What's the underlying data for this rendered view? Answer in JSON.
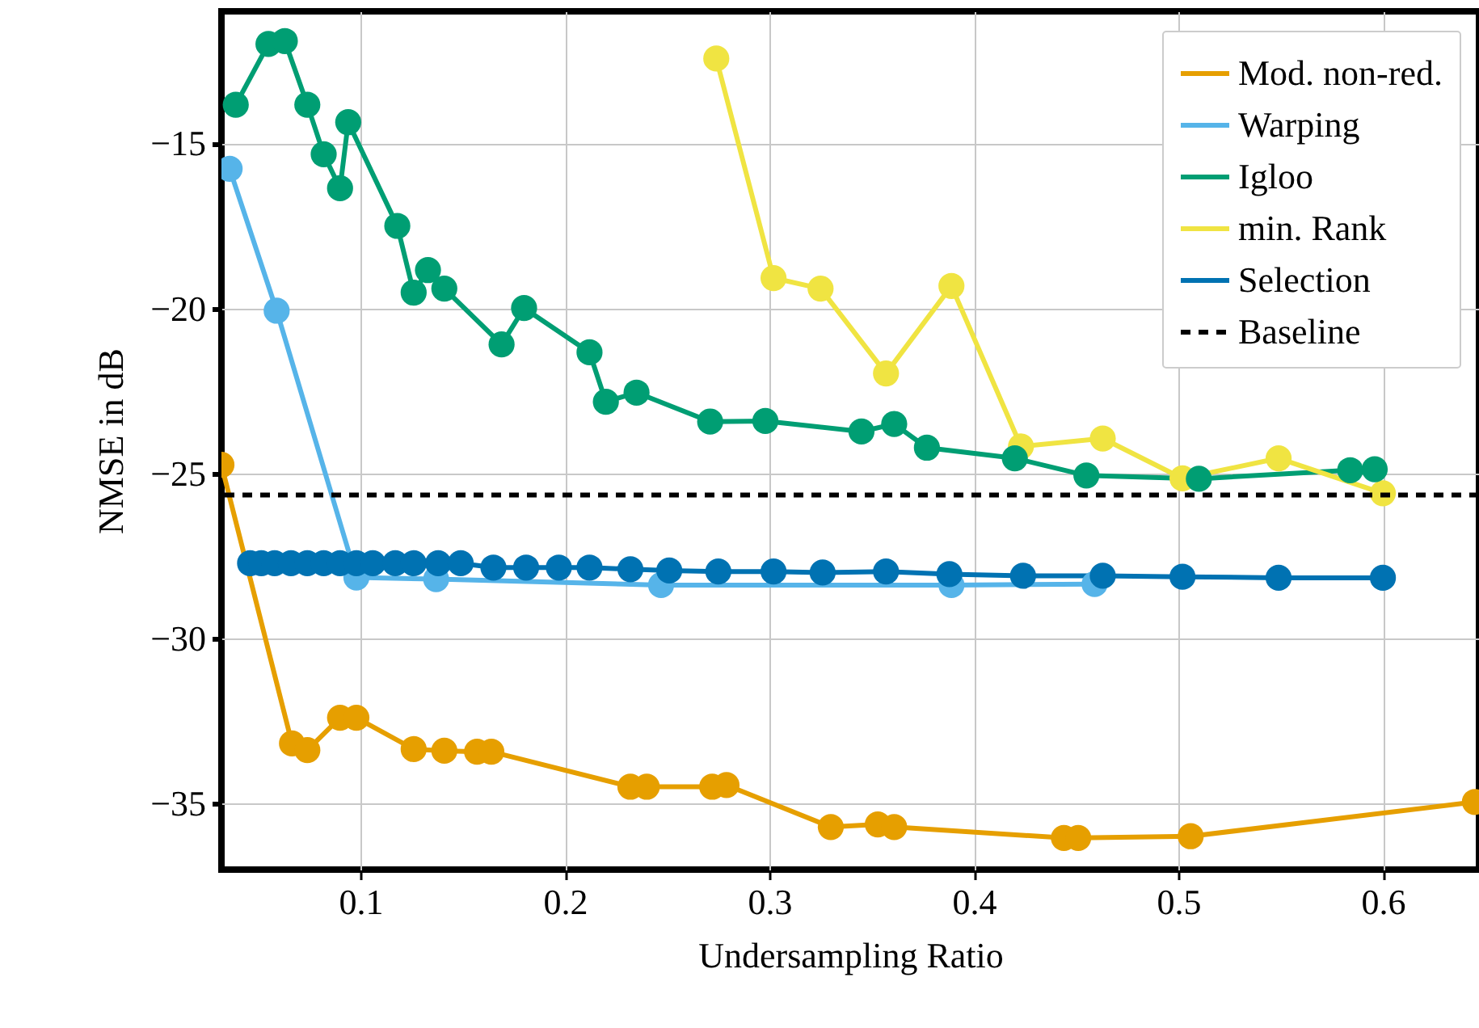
{
  "chart_data": {
    "type": "line",
    "xlabel": "Undersampling Ratio",
    "ylabel": "NMSE in dB",
    "xlim": [
      0.032,
      0.647
    ],
    "ylim": [
      -37,
      -11
    ],
    "xticks": [
      0.1,
      0.2,
      0.3,
      0.4,
      0.5,
      0.6
    ],
    "yticks": [
      -35,
      -30,
      -25,
      -20,
      -15
    ],
    "grid": true,
    "legend": "top right",
    "marker": "circle",
    "line_style": "solid",
    "series": [
      {
        "name": "Mod. non-red.",
        "color": "#e69f00",
        "x": [
          0.032,
          0.0665,
          0.074,
          0.09,
          0.098,
          0.126,
          0.141,
          0.157,
          0.164,
          0.232,
          0.24,
          0.272,
          0.279,
          0.33,
          0.353,
          0.361,
          0.444,
          0.451,
          0.506,
          0.645
        ],
        "values": [
          -24.74,
          -33.18,
          -33.38,
          -32.4,
          -32.4,
          -33.35,
          -33.4,
          -33.43,
          -33.43,
          -34.49,
          -34.49,
          -34.49,
          -34.44,
          -35.71,
          -35.63,
          -35.71,
          -36.04,
          -36.04,
          -35.99,
          -34.95
        ]
      },
      {
        "name": "Warping",
        "color": "#56b4e9",
        "x": [
          0.036,
          0.059,
          0.098,
          0.137,
          0.247,
          0.389,
          0.459
        ],
        "values": [
          -15.77,
          -20.07,
          -28.15,
          -28.2,
          -28.38,
          -28.38,
          -28.35
        ]
      },
      {
        "name": "Igloo",
        "color": "#009e73",
        "x": [
          0.039,
          0.055,
          0.063,
          0.074,
          0.082,
          0.09,
          0.094,
          0.118,
          0.126,
          0.133,
          0.141,
          0.169,
          0.18,
          0.212,
          0.22,
          0.235,
          0.271,
          0.298,
          0.345,
          0.361,
          0.377,
          0.42,
          0.455,
          0.51,
          0.584,
          0.596
        ],
        "values": [
          -13.83,
          -11.99,
          -11.9,
          -13.83,
          -15.33,
          -16.36,
          -14.36,
          -17.5,
          -19.52,
          -18.84,
          -19.4,
          -21.09,
          -19.99,
          -21.33,
          -22.83,
          -22.55,
          -23.43,
          -23.41,
          -23.73,
          -23.5,
          -24.22,
          -24.54,
          -25.06,
          -25.16,
          -24.9,
          -24.87
        ]
      },
      {
        "name": "min. Rank",
        "color": "#f0e442",
        "x": [
          0.274,
          0.302,
          0.325,
          0.357,
          0.389,
          0.423,
          0.463,
          0.502,
          0.549,
          0.6
        ],
        "values": [
          -12.43,
          -19.08,
          -19.4,
          -21.97,
          -19.32,
          -24.18,
          -23.94,
          -25.15,
          -24.54,
          -25.6
        ]
      },
      {
        "name": "Selection",
        "color": "#0072b2",
        "x": [
          0.046,
          0.0515,
          0.058,
          0.066,
          0.074,
          0.082,
          0.09,
          0.098,
          0.106,
          0.117,
          0.126,
          0.138,
          0.149,
          0.165,
          0.181,
          0.197,
          0.212,
          0.232,
          0.251,
          0.275,
          0.302,
          0.326,
          0.357,
          0.388,
          0.424,
          0.463,
          0.502,
          0.549,
          0.6
        ],
        "values": [
          -27.72,
          -27.72,
          -27.72,
          -27.72,
          -27.72,
          -27.72,
          -27.72,
          -27.72,
          -27.72,
          -27.72,
          -27.72,
          -27.72,
          -27.72,
          -27.85,
          -27.85,
          -27.85,
          -27.85,
          -27.9,
          -27.94,
          -27.97,
          -27.97,
          -28.0,
          -27.97,
          -28.05,
          -28.1,
          -28.1,
          -28.13,
          -28.16,
          -28.16
        ]
      }
    ],
    "ref_lines": [
      {
        "axis": "y",
        "value": -25.65,
        "label": "Baseline",
        "color": "#000000",
        "line_style": "dashed"
      }
    ]
  }
}
